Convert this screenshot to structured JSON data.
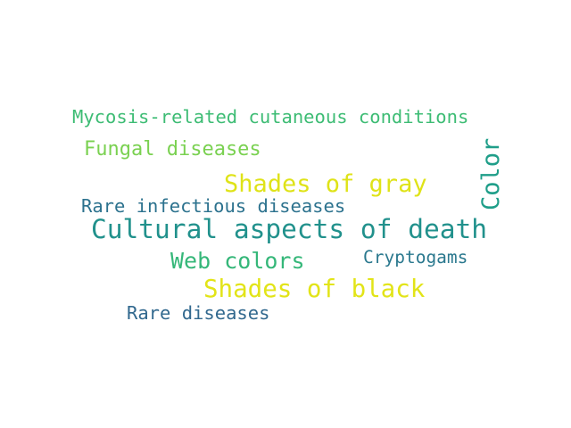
{
  "word_cloud": {
    "words": [
      {
        "text": "Mycosis-related cutaneous conditions",
        "color": "#3dbc74"
      },
      {
        "text": "Fungal diseases",
        "color": "#7ad151"
      },
      {
        "text": "Shades of gray",
        "color": "#dfe318"
      },
      {
        "text": "Color",
        "color": "#1f9e89"
      },
      {
        "text": "Rare infectious diseases",
        "color": "#2c728e"
      },
      {
        "text": "Cultural aspects of death",
        "color": "#21918c"
      },
      {
        "text": "Web colors",
        "color": "#35b779"
      },
      {
        "text": "Cryptogams",
        "color": "#2a788e"
      },
      {
        "text": "Shades of black",
        "color": "#e2e418"
      },
      {
        "text": "Rare diseases",
        "color": "#31688e"
      }
    ]
  }
}
